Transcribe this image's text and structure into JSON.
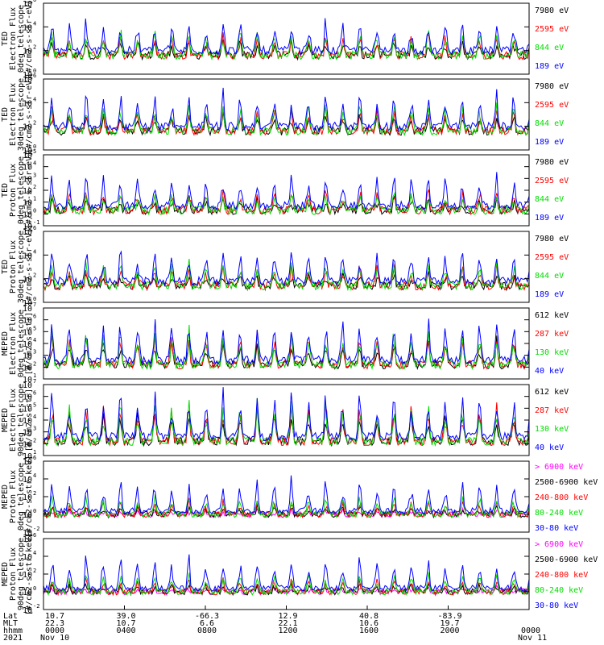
{
  "colors": {
    "blue": "#0000ff",
    "red": "#ff0000",
    "green": "#00dd00",
    "black": "#000000",
    "magenta": "#ff00ff",
    "white": "#ffffff"
  },
  "chart_data": {
    "type": "line",
    "x_range": [
      "Nov 10 0000",
      "Nov 11 0000"
    ],
    "panels": [
      {
        "id": "p1",
        "ylabel": [
          "TED",
          "Electron Flux",
          "0deg telescope",
          "[#/cm2-s-str-eV]"
        ],
        "ylim_exp": [
          0,
          6
        ],
        "ticks": [
          {
            "e": 0,
            "label": "10"
          },
          {
            "e": 2,
            "label": "10"
          },
          {
            "e": 4,
            "label": "10"
          },
          {
            "e": 6,
            "label": "10"
          }
        ],
        "base": 1.6,
        "peak": [
          1.2,
          1.7,
          2.0,
          2.5
        ],
        "series": [
          {
            "name": "7980 eV",
            "color": "black"
          },
          {
            "name": "2595 eV",
            "color": "red"
          },
          {
            "name": "844 eV",
            "color": "green"
          },
          {
            "name": "189 eV",
            "color": "blue"
          }
        ]
      },
      {
        "id": "p2",
        "ylabel": [
          "TED",
          "Electron Flux",
          "30deg telescope",
          "[#/cm2-s-str-eV]"
        ],
        "ylim_exp": [
          0,
          6
        ],
        "ticks": [
          {
            "e": 0,
            "label": "10"
          },
          {
            "e": 2,
            "label": "10"
          },
          {
            "e": 4,
            "label": "10"
          },
          {
            "e": 6,
            "label": "10"
          }
        ],
        "base": 1.6,
        "peak": [
          1.3,
          1.8,
          2.1,
          2.6
        ],
        "series": [
          {
            "name": "7980 eV",
            "color": "black"
          },
          {
            "name": "2595 eV",
            "color": "red"
          },
          {
            "name": "844 eV",
            "color": "green"
          },
          {
            "name": "189 eV",
            "color": "blue"
          }
        ]
      },
      {
        "id": "p3",
        "ylabel": [
          "TED",
          "Proton Flux",
          "0deg telescope",
          "[#/cm2-s-str-eV]"
        ],
        "ylim_exp": [
          -1,
          5
        ],
        "ticks": [
          {
            "e": -1,
            "label": "10"
          },
          {
            "e": 0,
            "label": "10"
          },
          {
            "e": 1,
            "label": "10"
          },
          {
            "e": 2,
            "label": "10"
          },
          {
            "e": 3,
            "label": "10"
          },
          {
            "e": 4,
            "label": "10"
          },
          {
            "e": 5,
            "label": "10"
          }
        ],
        "base": 0.3,
        "peak": [
          1.0,
          1.7,
          1.4,
          2.4
        ],
        "series": [
          {
            "name": "7980 eV",
            "color": "black"
          },
          {
            "name": "2595 eV",
            "color": "red"
          },
          {
            "name": "844 eV",
            "color": "green"
          },
          {
            "name": "189 eV",
            "color": "blue"
          }
        ]
      },
      {
        "id": "p4",
        "ylabel": [
          "TED",
          "Proton Flux",
          "30deg telescope",
          "[#/cm2-s-str-eV]"
        ],
        "ylim_exp": [
          0,
          6
        ],
        "ticks": [
          {
            "e": 0,
            "label": "10"
          },
          {
            "e": 2,
            "label": "10"
          },
          {
            "e": 4,
            "label": "10"
          },
          {
            "e": 6,
            "label": "10"
          }
        ],
        "base": 1.4,
        "peak": [
          0.9,
          1.5,
          2.0,
          2.5
        ],
        "series": [
          {
            "name": "7980 eV",
            "color": "black"
          },
          {
            "name": "2595 eV",
            "color": "red"
          },
          {
            "name": "844 eV",
            "color": "green"
          },
          {
            "name": "189 eV",
            "color": "blue"
          }
        ]
      },
      {
        "id": "p5",
        "ylabel": [
          "MEPED",
          "Electron Flux",
          "0deg telescope",
          "[#/cm2-s-str]"
        ],
        "ylim_exp": [
          1,
          7
        ],
        "ticks": [
          {
            "e": 1,
            "label": "10"
          },
          {
            "e": 2,
            "label": "10"
          },
          {
            "e": 3,
            "label": "10"
          },
          {
            "e": 4,
            "label": "10"
          },
          {
            "e": 5,
            "label": "10"
          },
          {
            "e": 6,
            "label": "10"
          },
          {
            "e": 7,
            "label": "10"
          }
        ],
        "base": 2.2,
        "peak": [
          2.0,
          2.5,
          2.7,
          3.3
        ],
        "series": [
          {
            "name": "612 keV",
            "color": "black"
          },
          {
            "name": "287 keV",
            "color": "red"
          },
          {
            "name": "130 keV",
            "color": "green"
          },
          {
            "name": "40 keV",
            "color": "blue"
          }
        ]
      },
      {
        "id": "p6",
        "ylabel": [
          "MEPED",
          "Electron Flux",
          "90deg telescope",
          "[#/cm2-s-str]"
        ],
        "ylim_exp": [
          1,
          7
        ],
        "ticks": [
          {
            "e": 1,
            "label": "10"
          },
          {
            "e": 2,
            "label": "10"
          },
          {
            "e": 3,
            "label": "10"
          },
          {
            "e": 4,
            "label": "10"
          },
          {
            "e": 5,
            "label": "10"
          },
          {
            "e": 6,
            "label": "10"
          },
          {
            "e": 7,
            "label": "10"
          }
        ],
        "base": 2.2,
        "peak": [
          2.4,
          2.9,
          3.1,
          3.5
        ],
        "series": [
          {
            "name": "612 keV",
            "color": "black"
          },
          {
            "name": "287 keV",
            "color": "red"
          },
          {
            "name": "130 keV",
            "color": "green"
          },
          {
            "name": "40 keV",
            "color": "blue"
          }
        ]
      },
      {
        "id": "p7",
        "ylabel": [
          "MEPED",
          "Proton Flux",
          "0deg telescope",
          "[#/cm2-s-str-keV]"
        ],
        "ylim_exp": [
          -2,
          6
        ],
        "ticks": [
          {
            "e": -2,
            "label": "10"
          },
          {
            "e": 0,
            "label": "10"
          },
          {
            "e": 2,
            "label": "10"
          },
          {
            "e": 4,
            "label": "10"
          },
          {
            "e": 6,
            "label": "10"
          }
        ],
        "base": 0.0,
        "peak": [
          0.4,
          0.8,
          1.4,
          2.0,
          3.2
        ],
        "series": [
          {
            "name": "> 6900 keV",
            "color": "magenta"
          },
          {
            "name": "2500-6900 keV",
            "color": "black"
          },
          {
            "name": "240-800 keV",
            "color": "red"
          },
          {
            "name": "80-240 keV",
            "color": "green"
          },
          {
            "name": "30-80 keV",
            "color": "blue"
          }
        ]
      },
      {
        "id": "p8",
        "ylabel": [
          "MEPED",
          "Proton Flux",
          "90deg telescope",
          "[#/cm2-s-str-keV]"
        ],
        "ylim_exp": [
          -2,
          6
        ],
        "ticks": [
          {
            "e": -2,
            "label": "10"
          },
          {
            "e": 0,
            "label": "10"
          },
          {
            "e": 2,
            "label": "10"
          },
          {
            "e": 4,
            "label": "10"
          },
          {
            "e": 6,
            "label": "10"
          }
        ],
        "base": 0.0,
        "peak": [
          0.4,
          0.8,
          1.4,
          2.0,
          3.3
        ],
        "series": [
          {
            "name": "> 6900 keV",
            "color": "magenta"
          },
          {
            "name": "2500-6900 keV",
            "color": "black"
          },
          {
            "name": "240-800 keV",
            "color": "red"
          },
          {
            "name": "80-240 keV",
            "color": "green"
          },
          {
            "name": "30-80 keV",
            "color": "blue"
          }
        ]
      }
    ],
    "xaxis": {
      "row_labels": [
        "Lat",
        "MLT",
        "hhmm",
        "2021"
      ],
      "lat": [
        "10.7",
        "39.0",
        "-66.3",
        "12.9",
        "40.8",
        "-83.9"
      ],
      "mlt": [
        "22.3",
        "10.7",
        "6.6",
        "22.1",
        "10.6",
        "19.7"
      ],
      "hhmm": [
        "0000",
        "0400",
        "0800",
        "1200",
        "1600",
        "2000",
        "0000"
      ],
      "dates": {
        "start": "Nov 10",
        "end": "Nov 11"
      }
    }
  }
}
